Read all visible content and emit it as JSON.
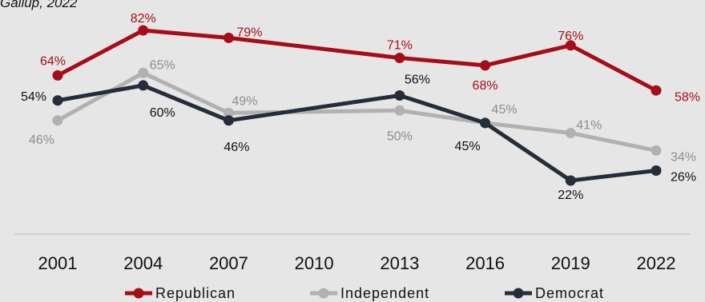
{
  "source_note": "Gallup, 2022",
  "chart_data": {
    "type": "line",
    "x": [
      2001,
      2004,
      2007,
      2010,
      2013,
      2016,
      2019,
      2022
    ],
    "series": [
      {
        "name": "Republican",
        "color": "#a50e19",
        "points": [
          [
            2001,
            64
          ],
          [
            2004,
            82
          ],
          [
            2007,
            79
          ],
          [
            2013,
            71
          ],
          [
            2016,
            68
          ],
          [
            2019,
            76
          ],
          [
            2022,
            58
          ]
        ],
        "labels": [
          "64%",
          "82%",
          "79%",
          "71%",
          "68%",
          "76%",
          "58%"
        ]
      },
      {
        "name": "Independent",
        "color": "#b3b0b0",
        "points": [
          [
            2001,
            46
          ],
          [
            2004,
            65
          ],
          [
            2007,
            49
          ],
          [
            2013,
            50
          ],
          [
            2016,
            45
          ],
          [
            2019,
            41
          ],
          [
            2022,
            34
          ]
        ],
        "labels": [
          "46%",
          "65%",
          "49%",
          "50%",
          "45%",
          "41%",
          "34%"
        ]
      },
      {
        "name": "Democrat",
        "color": "#252c3a",
        "points": [
          [
            2001,
            54
          ],
          [
            2004,
            60
          ],
          [
            2007,
            46
          ],
          [
            2013,
            56
          ],
          [
            2016,
            45
          ],
          [
            2019,
            22
          ],
          [
            2022,
            26
          ]
        ],
        "labels": [
          "54%",
          "60%",
          "46%",
          "56%",
          "45%",
          "22%",
          "26%"
        ]
      }
    ],
    "x_tick_labels": [
      "2001",
      "2004",
      "2007",
      "2010",
      "2013",
      "2016",
      "2019",
      "2022"
    ],
    "legend": [
      "Republican",
      "Independent",
      "Democrat"
    ],
    "legend_position": "bottom",
    "grid": false
  }
}
